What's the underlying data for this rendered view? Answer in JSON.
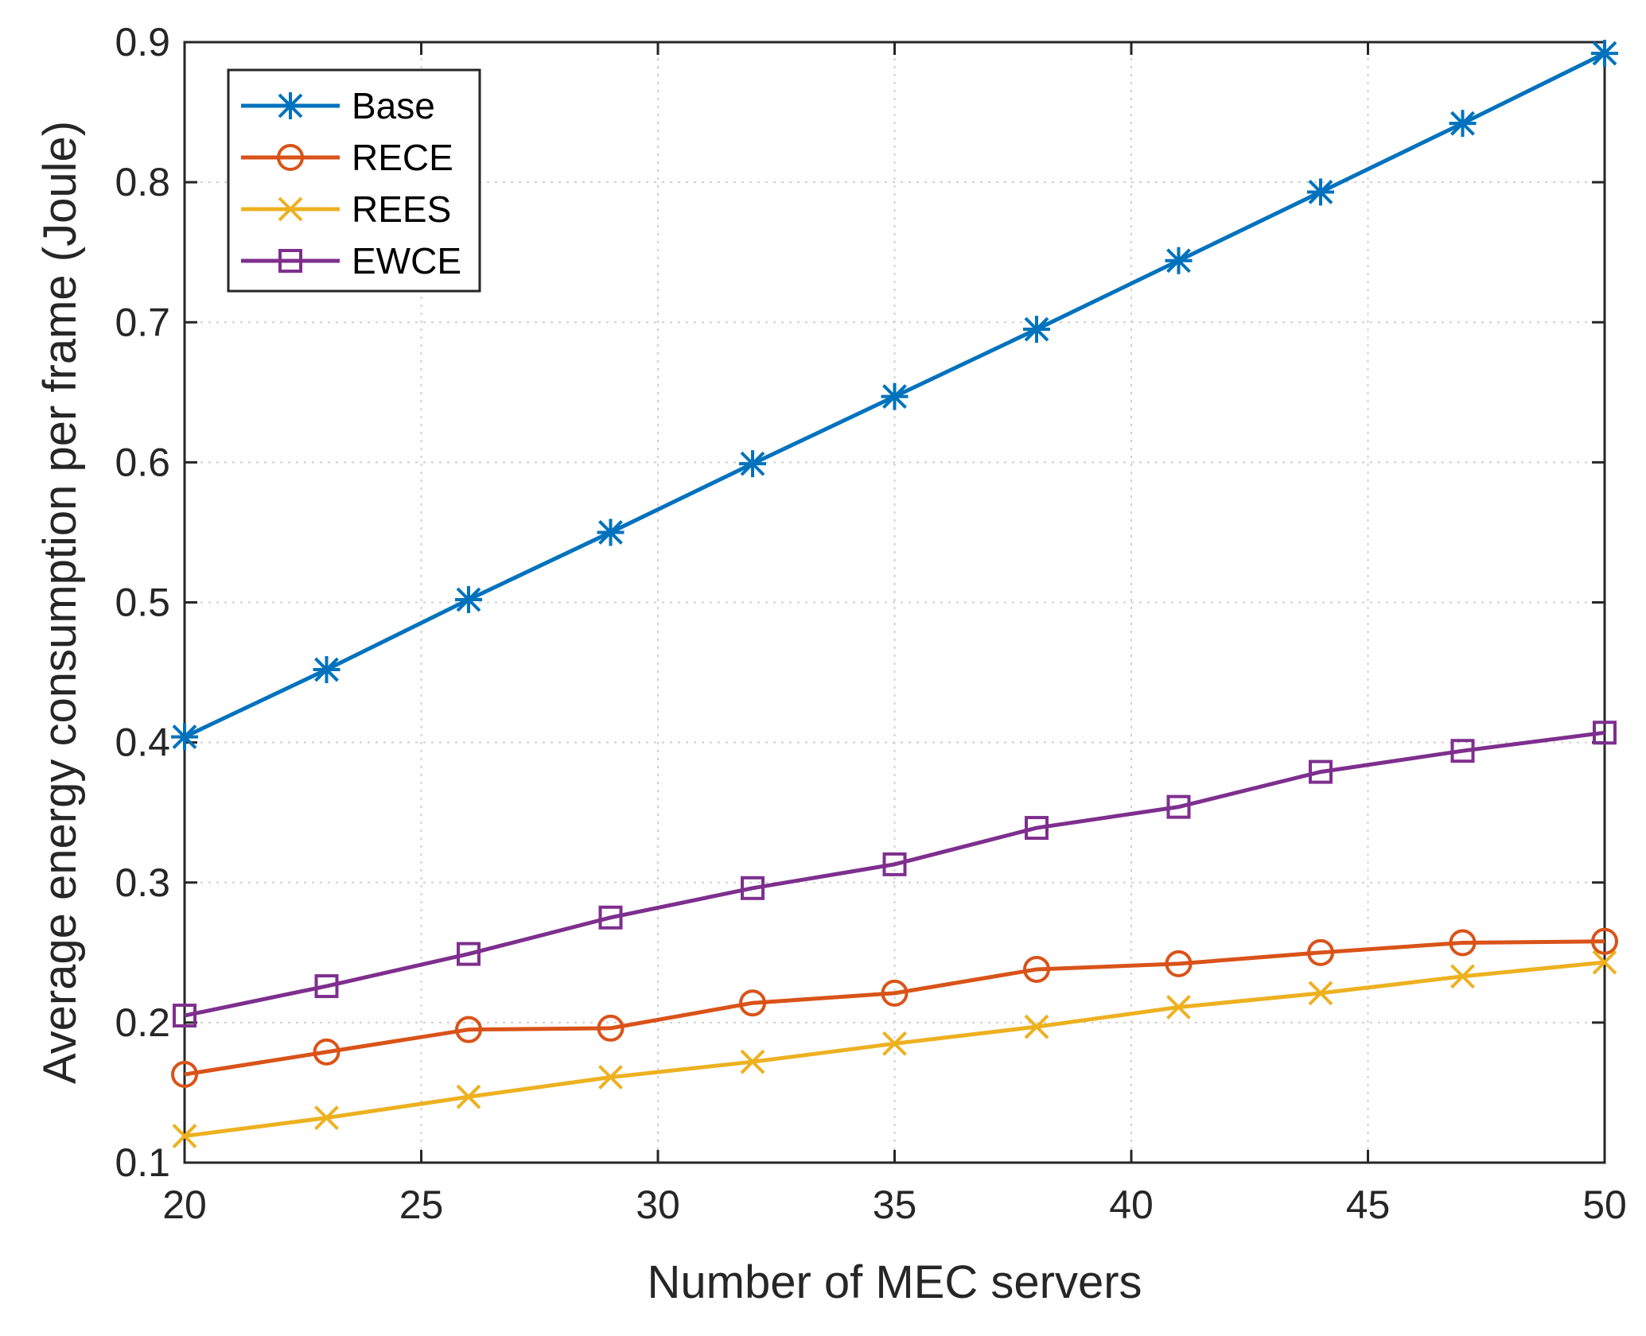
{
  "chart_data": {
    "type": "line",
    "title": "",
    "xlabel": "Number of MEC servers",
    "ylabel": "Average energy consumption per frame (Joule)",
    "xlim": [
      20,
      50
    ],
    "ylim": [
      0.1,
      0.9
    ],
    "xticks": [
      20,
      25,
      30,
      35,
      40,
      45,
      50
    ],
    "yticks": [
      0.1,
      0.2,
      0.3,
      0.4,
      0.5,
      0.6,
      0.7,
      0.8,
      0.9
    ],
    "xtick_labels": [
      "20",
      "25",
      "30",
      "35",
      "40",
      "45",
      "50"
    ],
    "ytick_labels": [
      "0.1",
      "0.2",
      "0.3",
      "0.4",
      "0.5",
      "0.6",
      "0.7",
      "0.8",
      "0.9"
    ],
    "grid": true,
    "legend_position": "top-left",
    "x": [
      20,
      23,
      26,
      29,
      32,
      35,
      38,
      41,
      44,
      47,
      50
    ],
    "series": [
      {
        "name": "Base",
        "color": "#0072BD",
        "marker": "asterisk",
        "values": [
          0.404,
          0.452,
          0.502,
          0.55,
          0.599,
          0.647,
          0.695,
          0.744,
          0.793,
          0.842,
          0.892
        ]
      },
      {
        "name": "RECE",
        "color": "#D95319",
        "marker": "circle",
        "values": [
          0.163,
          0.179,
          0.195,
          0.196,
          0.214,
          0.221,
          0.238,
          0.242,
          0.25,
          0.257,
          0.258
        ]
      },
      {
        "name": "REES",
        "color": "#EDB120",
        "marker": "x",
        "values": [
          0.119,
          0.132,
          0.147,
          0.161,
          0.172,
          0.185,
          0.197,
          0.211,
          0.221,
          0.233,
          0.243
        ]
      },
      {
        "name": "EWCE",
        "color": "#7E2F8E",
        "marker": "square",
        "values": [
          0.205,
          0.226,
          0.249,
          0.275,
          0.296,
          0.313,
          0.339,
          0.354,
          0.379,
          0.394,
          0.407
        ]
      }
    ]
  }
}
